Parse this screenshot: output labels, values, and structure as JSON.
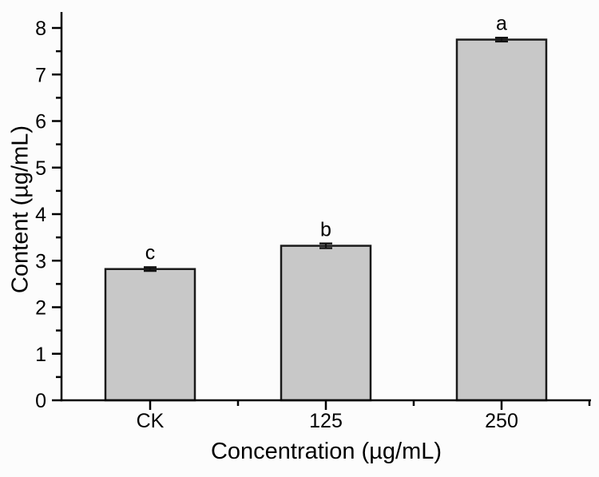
{
  "figure": {
    "background": "#fcfcfc",
    "text_color": "#000000"
  },
  "chart_data": {
    "type": "bar",
    "title": "",
    "xlabel": "Concentration (µg/mL)",
    "ylabel": "Content (µg/mL)",
    "categories": [
      "CK",
      "125",
      "250"
    ],
    "values": [
      2.82,
      3.32,
      7.75
    ],
    "errors": [
      0.04,
      0.05,
      0.04
    ],
    "sig_letters": [
      "c",
      "b",
      "a"
    ],
    "yticks": [
      0,
      1,
      2,
      3,
      4,
      5,
      6,
      7,
      8
    ],
    "ytick_minor_interval": 0.5,
    "ylim": [
      0,
      8.35
    ],
    "grid": false,
    "legend": null,
    "bar_fill": "#c8c8c8",
    "bar_border": "#1a1a1a",
    "axis_color": "#000000",
    "error_bar_color": "#111111"
  }
}
